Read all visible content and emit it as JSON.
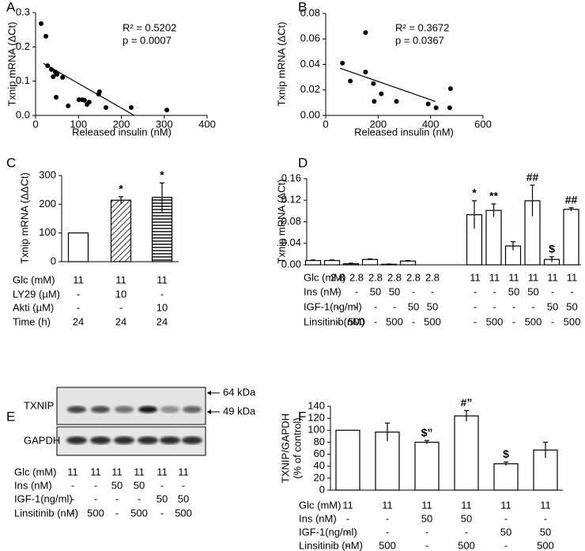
{
  "chart_data": [
    {
      "type": "scatter",
      "panel": "A",
      "ylabel": "Txnip mRNA (ΔCt)",
      "xlabel": "Released insulin (nM)",
      "xlim": [
        0,
        400
      ],
      "xticks": [
        0,
        100,
        200,
        300,
        400
      ],
      "ylim": [
        0,
        0.3
      ],
      "yticks": [
        {
          "value": 0,
          "label": "0.0"
        },
        0.1,
        0.2,
        0.3
      ],
      "x": [
        13,
        24,
        28,
        37,
        41,
        46,
        50,
        48,
        63,
        76,
        101,
        109,
        120,
        114,
        125,
        147,
        149,
        164,
        223,
        306
      ],
      "y": [
        0.268,
        0.231,
        0.145,
        0.134,
        0.113,
        0.127,
        0.12,
        0.053,
        0.111,
        0.028,
        0.046,
        0.046,
        0.032,
        0.044,
        0.039,
        0.062,
        0.069,
        0.023,
        0.023,
        0.016
      ],
      "trendline": {
        "x": [
          18,
          230
        ],
        "y": [
          0.152,
          0
        ]
      },
      "annotations": [
        "R² = 0.5202",
        "p = 0.0007"
      ]
    },
    {
      "type": "scatter",
      "panel": "B",
      "ylabel": "Txnip mRNA (ΔCt)",
      "xlabel": "Released insulin (nM)",
      "xlim": [
        0,
        600
      ],
      "xticks": [
        0,
        200,
        400,
        600
      ],
      "ylim": [
        0,
        0.08
      ],
      "yticks": [
        {
          "value": 0,
          "label": "0.00"
        },
        0.02,
        0.04,
        0.06,
        0.08
      ],
      "x": [
        64,
        94,
        152,
        152,
        182,
        185,
        212,
        270,
        391,
        421,
        476,
        473
      ],
      "y": [
        0.041,
        0.027,
        0.065,
        0.034,
        0.025,
        0.011,
        0.017,
        0.011,
        0.009,
        0.006,
        0.021,
        0.006
      ],
      "trendline": {
        "x": [
          55,
          418
        ],
        "y": [
          0.037,
          0.011
        ]
      },
      "annotations": [
        "R² = 0.3672",
        "p = 0.0367"
      ]
    },
    {
      "type": "bar",
      "panel": "C",
      "ylabel": "Txnip mRNA (ΔΔCt)",
      "ylim": [
        0,
        300
      ],
      "yticks": [
        0,
        100,
        200,
        300
      ],
      "values": [
        100,
        214,
        224
      ],
      "errors": [
        null,
        12,
        50
      ],
      "bar_labels": [
        null,
        "*",
        "*"
      ],
      "patterns": [
        "white",
        "diagonal",
        "horizontal"
      ],
      "conditions": [
        {
          "label": "Glc (mM)",
          "values": [
            "11",
            "11",
            "11"
          ]
        },
        {
          "label": "LY29 (µM)",
          "values": [
            "-",
            "10",
            "-"
          ]
        },
        {
          "label": "Akti (µM)",
          "values": [
            "-",
            "-",
            "10"
          ]
        },
        {
          "label": "Time (h)",
          "values": [
            "24",
            "24",
            "24"
          ]
        }
      ]
    },
    {
      "type": "bar",
      "panel": "D",
      "ylabel": "Txnip mRNA (ΔCt)",
      "ylim": [
        0,
        0.16
      ],
      "yticks": [
        {
          "value": 0,
          "label": "0.00"
        },
        0.04,
        0.08,
        0.12,
        0.16
      ],
      "values": [
        0.008,
        0.008,
        0.002,
        0.01,
        0.001,
        0.007,
        0.093,
        0.101,
        0.035,
        0.119,
        0.01,
        0.103
      ],
      "errors": [
        0.001,
        0.001,
        0.001,
        0.001,
        0.0005,
        0.001,
        0.026,
        0.012,
        0.008,
        0.029,
        0.005,
        0.003
      ],
      "bar_labels": [
        null,
        null,
        null,
        null,
        null,
        null,
        "*",
        "**",
        null,
        "##",
        "$",
        "##"
      ],
      "patterns": [
        "white",
        "white",
        "white",
        "white",
        "white",
        "white",
        "white",
        "white",
        "white",
        "white",
        "white",
        "white"
      ],
      "conditions": [
        {
          "label": "Glc (mM)",
          "values": [
            "2.8",
            "2.8",
            "2.8",
            "2.8",
            "2.8",
            "2.8",
            "11",
            "11",
            "11",
            "11",
            "11",
            "11"
          ]
        },
        {
          "label": "Ins (nM)",
          "values": [
            "-",
            "-",
            "50",
            "50",
            "-",
            "-",
            "-",
            "-",
            "50",
            "50",
            "-",
            "-"
          ]
        },
        {
          "label": "IGF-1(ng/ml)",
          "values": [
            "-",
            "-",
            "-",
            "-",
            "50",
            "50",
            "-",
            "-",
            "-",
            "-",
            "50",
            "50"
          ]
        },
        {
          "label": "Linsitinib(nM)",
          "values": [
            "-",
            "500",
            "-",
            "500",
            "-",
            "500",
            "-",
            "500",
            "-",
            "500",
            "-",
            "500"
          ]
        }
      ]
    },
    {
      "type": "blot",
      "panel": "E",
      "bands": [
        "TXNIP",
        "GAPDH"
      ],
      "markers": [
        "64 kDa",
        "49 kDa"
      ],
      "conditions": [
        {
          "label": "Glc (mM)",
          "values": [
            "11",
            "11",
            "11",
            "11",
            "11",
            "11"
          ]
        },
        {
          "label": "Ins (nM)",
          "values": [
            "-",
            "-",
            "50",
            "50",
            "-",
            "-"
          ]
        },
        {
          "label": "IGF-1(ng/ml)",
          "values": [
            "-",
            "-",
            "-",
            "-",
            "50",
            "50"
          ]
        },
        {
          "label": "Linsitinib (nM)",
          "values": [
            "-",
            "500",
            "-",
            "500",
            "-",
            "500"
          ]
        }
      ]
    },
    {
      "type": "bar",
      "panel": "F",
      "ylabel": [
        "TXNIP/GAPDH",
        "(% of control)"
      ],
      "ylim": [
        0,
        140
      ],
      "yticks": [
        0,
        20,
        40,
        60,
        80,
        100,
        120,
        140
      ],
      "values": [
        100,
        97,
        80,
        124,
        44,
        67
      ],
      "errors": [
        null,
        15,
        3,
        9,
        3,
        13
      ],
      "bar_labels": [
        null,
        null,
        "$”",
        "#”",
        "$",
        null
      ],
      "patterns": [
        "white",
        "white",
        "white",
        "white",
        "white",
        "white"
      ],
      "conditions": [
        {
          "label": "Glc (mM)",
          "values": [
            "11",
            "11",
            "11",
            "11",
            "11",
            "11"
          ]
        },
        {
          "label": "Ins (nM)",
          "values": [
            "-",
            "-",
            "50",
            "50",
            "-",
            "-"
          ]
        },
        {
          "label": "IGF-1(ng/ml)",
          "values": [
            "-",
            "-",
            "-",
            "-",
            "50",
            "50"
          ]
        },
        {
          "label": "Linsitinib (nM)",
          "values": [
            "-",
            "500",
            "-",
            "500",
            "-",
            "500"
          ]
        }
      ]
    }
  ]
}
